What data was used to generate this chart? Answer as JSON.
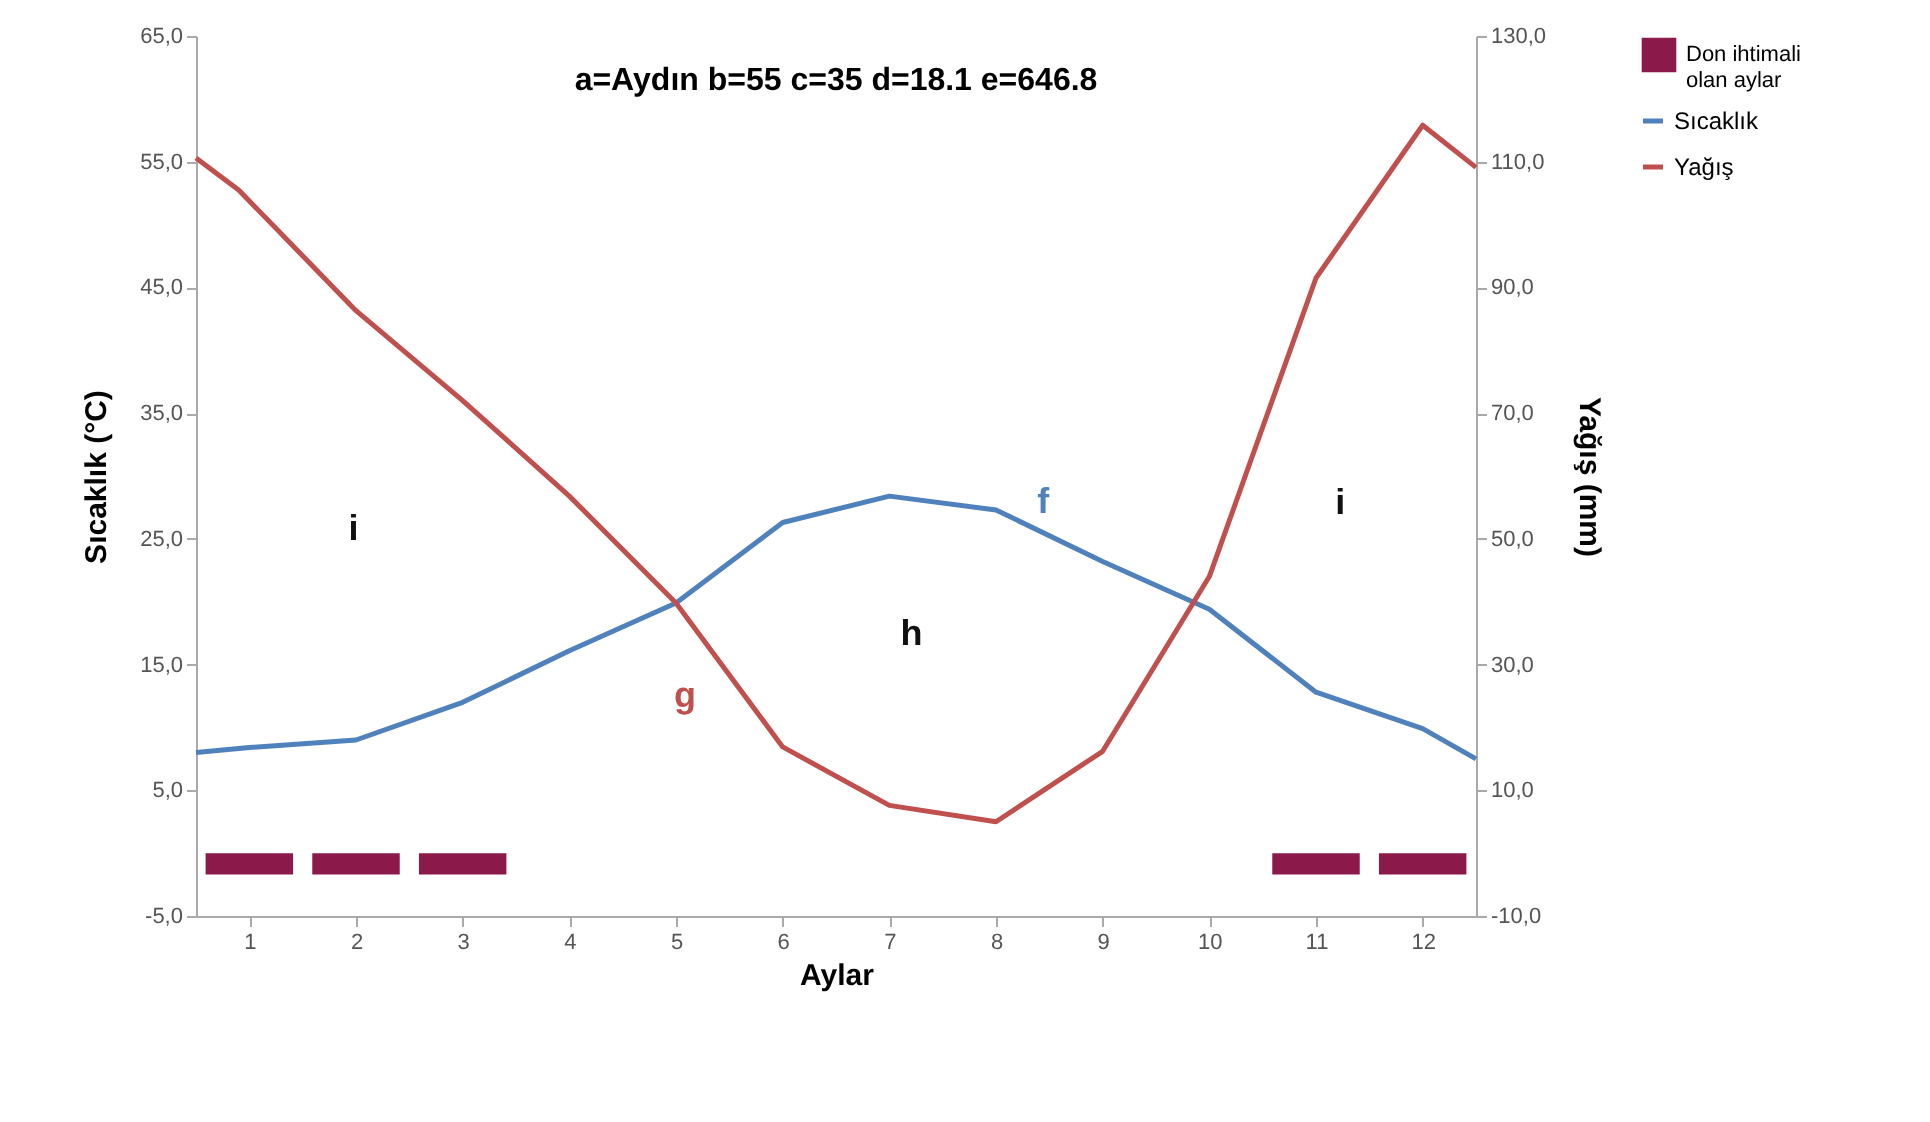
{
  "chart_data": {
    "type": "line",
    "title": "a=Aydın  b=55  c=35  d=18.1  e=646.8",
    "xlabel": "Aylar",
    "ylabel": "Sıcaklık (°C)",
    "y2label": "Yağış (mm)",
    "xlim": [
      0.5,
      12.5
    ],
    "xticks": [
      1,
      2,
      3,
      4,
      5,
      6,
      7,
      8,
      9,
      10,
      11,
      12
    ],
    "ylim": [
      -5,
      65
    ],
    "yticks": [
      {
        "value": -5,
        "label": "-5,0"
      },
      {
        "value": 5,
        "label": "5,0"
      },
      {
        "value": 15,
        "label": "15,0"
      },
      {
        "value": 25,
        "label": "25,0"
      },
      {
        "value": 35,
        "label": "35,0"
      },
      {
        "value": 45,
        "label": "45,0"
      },
      {
        "value": 55,
        "label": "55,0"
      },
      {
        "value": 65,
        "label": "65,0"
      }
    ],
    "y2lim": [
      -10,
      130
    ],
    "y2ticks": [
      {
        "value": -10,
        "label": "-10,0"
      },
      {
        "value": 10,
        "label": "10,0"
      },
      {
        "value": 30,
        "label": "30,0"
      },
      {
        "value": 50,
        "label": "50,0"
      },
      {
        "value": 70,
        "label": "70,0"
      },
      {
        "value": 90,
        "label": "90,0"
      },
      {
        "value": 110,
        "label": "110,0"
      },
      {
        "value": 130,
        "label": "130,0"
      }
    ],
    "series": [
      {
        "name": "Sıcaklık",
        "color": "#4f81bd",
        "x": [
          0.5,
          1,
          2,
          3,
          4,
          5,
          6,
          7,
          8,
          9,
          10,
          11,
          12,
          12.5
        ],
        "values": [
          8.0,
          8.4,
          9.0,
          12.0,
          16.1,
          19.9,
          26.3,
          28.4,
          27.3,
          23.2,
          19.4,
          12.8,
          9.9,
          7.5
        ]
      },
      {
        "name": "Yağış",
        "axis": "y2",
        "color": "#c0504d",
        "x": [
          0.5,
          0.9,
          2,
          3,
          4,
          5,
          6,
          7,
          8,
          9,
          10,
          11,
          12,
          12.5
        ],
        "values": [
          110.6,
          105.5,
          86.3,
          72.0,
          56.8,
          39.8,
          16.9,
          7.6,
          5.0,
          16.2,
          44.0,
          91.5,
          115.8,
          109.1
        ]
      },
      {
        "name": "Don ihtimali olan aylar",
        "type": "bar",
        "color": "#8b1a4a",
        "x": [
          1,
          2,
          3,
          11,
          12
        ],
        "values": [
          -1.7,
          -1.7,
          -1.7,
          -1.7,
          -1.7
        ]
      }
    ],
    "annotations": [
      "f",
      "g",
      "h",
      "i",
      "i"
    ],
    "legend": "right",
    "grid": false
  }
}
